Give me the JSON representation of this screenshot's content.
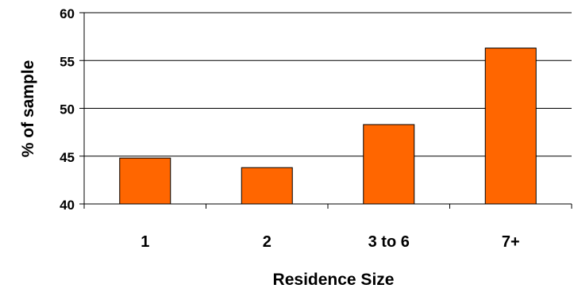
{
  "chart_data": {
    "type": "bar",
    "title": "",
    "xlabel": "Residence Size",
    "ylabel": "% of sample",
    "categories": [
      "1",
      "2",
      "3 to 6",
      "7+"
    ],
    "values": [
      44.8,
      43.8,
      48.3,
      56.3
    ],
    "ylim": [
      40,
      60
    ],
    "yticks": [
      "40",
      "45",
      "50",
      "55",
      "60"
    ],
    "grid": true,
    "legend": "none",
    "colors": {
      "bar_fill": "#ff6600",
      "bar_stroke": "#000000",
      "grid": "#000000",
      "axis": "#000000"
    }
  }
}
